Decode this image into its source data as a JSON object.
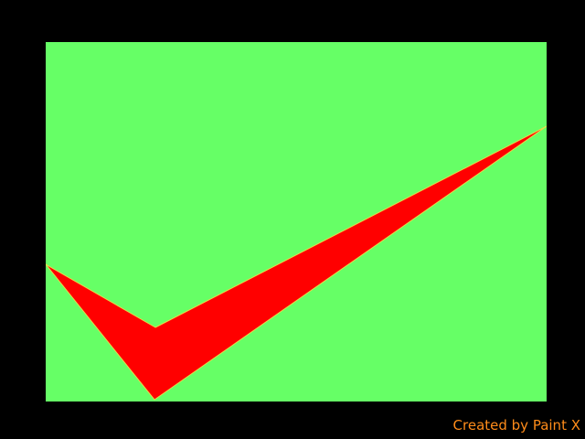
{
  "colors": {
    "background": "#000000",
    "canvas_fill": "#66ff66",
    "checkmark_fill": "#ff0000",
    "checkmark_outline": "#e6d84a",
    "credit_text": "#ff8c1a"
  },
  "drawing": {
    "shape_icon": "checkmark-icon"
  },
  "credit": {
    "text": "Created by Paint X"
  }
}
